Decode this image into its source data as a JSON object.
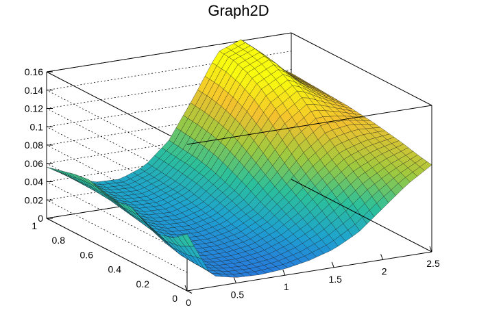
{
  "chart_data": {
    "type": "surface",
    "title": "Graph2D",
    "xlabel": "",
    "ylabel": "",
    "zlabel": "",
    "xlim": [
      0,
      2.5
    ],
    "ylim": [
      0,
      1
    ],
    "zlim": [
      0,
      0.16
    ],
    "x_ticks": [
      "0",
      "0.5",
      "1",
      "1.5",
      "2",
      "2.5"
    ],
    "y_ticks": [
      "0",
      "0.2",
      "0.4",
      "0.6",
      "0.8",
      "1"
    ],
    "z_ticks": [
      "0",
      "0.02",
      "0.04",
      "0.06",
      "0.08",
      "0.1",
      "0.12",
      "0.14",
      "0.16"
    ],
    "grid": true,
    "colormap": [
      "#3d26a8",
      "#2a6fe0",
      "#1ea2d0",
      "#2cc09a",
      "#9fc93e",
      "#f4c12e",
      "#f9fb0e"
    ],
    "grid_x": [
      0,
      0.25,
      0.5,
      0.75,
      1.0,
      1.25,
      1.5,
      1.75,
      2.0,
      2.25,
      2.5
    ],
    "grid_y": [
      0,
      0.1,
      0.2,
      0.3,
      0.4,
      0.5,
      0.6,
      0.7,
      0.8,
      0.9,
      1.0
    ],
    "z_rows": [
      [
        0.062,
        0.012,
        0.006,
        0.005,
        0.007,
        0.012,
        0.02,
        0.034,
        0.056,
        0.078,
        0.095
      ],
      [
        0.05,
        0.014,
        0.008,
        0.007,
        0.01,
        0.018,
        0.03,
        0.048,
        0.07,
        0.086,
        0.098
      ],
      [
        0.046,
        0.016,
        0.01,
        0.01,
        0.014,
        0.024,
        0.04,
        0.062,
        0.082,
        0.094,
        0.102
      ],
      [
        0.052,
        0.02,
        0.013,
        0.013,
        0.018,
        0.03,
        0.05,
        0.074,
        0.094,
        0.102,
        0.105
      ],
      [
        0.06,
        0.026,
        0.017,
        0.016,
        0.022,
        0.036,
        0.06,
        0.088,
        0.108,
        0.112,
        0.108
      ],
      [
        0.058,
        0.03,
        0.02,
        0.019,
        0.026,
        0.044,
        0.072,
        0.104,
        0.124,
        0.118,
        0.11
      ],
      [
        0.062,
        0.033,
        0.023,
        0.022,
        0.03,
        0.05,
        0.084,
        0.12,
        0.138,
        0.124,
        0.112
      ],
      [
        0.066,
        0.036,
        0.026,
        0.025,
        0.034,
        0.056,
        0.094,
        0.134,
        0.148,
        0.128,
        0.113
      ],
      [
        0.064,
        0.038,
        0.028,
        0.027,
        0.036,
        0.06,
        0.1,
        0.144,
        0.156,
        0.13,
        0.114
      ],
      [
        0.06,
        0.039,
        0.03,
        0.029,
        0.038,
        0.062,
        0.104,
        0.15,
        0.16,
        0.131,
        0.115
      ],
      [
        0.056,
        0.04,
        0.031,
        0.03,
        0.04,
        0.064,
        0.106,
        0.152,
        0.162,
        0.132,
        0.116
      ]
    ]
  }
}
